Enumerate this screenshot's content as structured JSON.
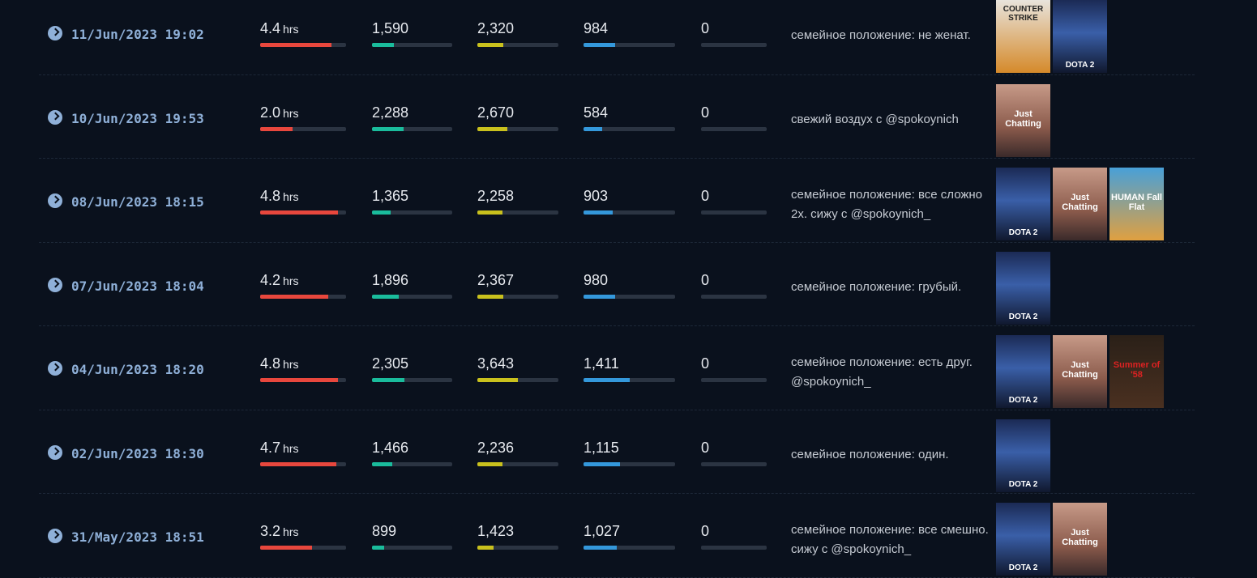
{
  "duration_unit": "hrs",
  "bar_colors": [
    "#e8473d",
    "#1abc9c",
    "#c9c11d",
    "#3498db",
    "#3a4350"
  ],
  "rows": [
    {
      "date": "11/Jun/2023 19:02",
      "duration": 4.4,
      "stats": [
        {
          "value": 1590,
          "label": "1,590"
        },
        {
          "value": 2320,
          "label": "2,320"
        },
        984,
        0
      ],
      "title": "семейное положение: не женат.",
      "games": [
        "COUNTER STRIKE",
        "DOTA 2"
      ]
    },
    {
      "date": "10/Jun/2023 19:53",
      "duration": 2.0,
      "stats": [
        {
          "value": 2288,
          "label": "2,288"
        },
        {
          "value": 2670,
          "label": "2,670"
        },
        584,
        0
      ],
      "title": "свежий воздух с @spokoynich",
      "games": [
        "Just Chatting"
      ]
    },
    {
      "date": "08/Jun/2023 18:15",
      "duration": 4.8,
      "stats": [
        {
          "value": 1365,
          "label": "1,365"
        },
        {
          "value": 2258,
          "label": "2,258"
        },
        903,
        0
      ],
      "title": "семейное положение: все сложно 2х. сижу с @spokoynich_",
      "games": [
        "DOTA 2",
        "Just Chatting",
        "HUMAN Fall Flat"
      ]
    },
    {
      "date": "07/Jun/2023 18:04",
      "duration": 4.2,
      "stats": [
        {
          "value": 1896,
          "label": "1,896"
        },
        {
          "value": 2367,
          "label": "2,367"
        },
        980,
        0
      ],
      "title": "семейное положение: грубый.",
      "games": [
        "DOTA 2"
      ]
    },
    {
      "date": "04/Jun/2023 18:20",
      "duration": 4.8,
      "stats": [
        {
          "value": 2305,
          "label": "2,305"
        },
        {
          "value": 3643,
          "label": "3,643"
        },
        {
          "value": 1411,
          "label": "1,411"
        },
        0
      ],
      "title": "семейное положение: есть друг. @spokoynich_",
      "games": [
        "DOTA 2",
        "Just Chatting",
        "Summer of '58"
      ]
    },
    {
      "date": "02/Jun/2023 18:30",
      "duration": 4.7,
      "stats": [
        {
          "value": 1466,
          "label": "1,466"
        },
        {
          "value": 2236,
          "label": "2,236"
        },
        {
          "value": 1115,
          "label": "1,115"
        },
        0
      ],
      "title": "семейное положение: один.",
      "games": [
        "DOTA 2"
      ]
    },
    {
      "date": "31/May/2023 18:51",
      "duration": 3.2,
      "stats": [
        899,
        {
          "value": 1423,
          "label": "1,423"
        },
        {
          "value": 1027,
          "label": "1,027"
        },
        0
      ],
      "title": "семейное положение: все смешно. сижу с @spokoynich_",
      "games": [
        "DOTA 2",
        "Just Chatting"
      ]
    }
  ]
}
